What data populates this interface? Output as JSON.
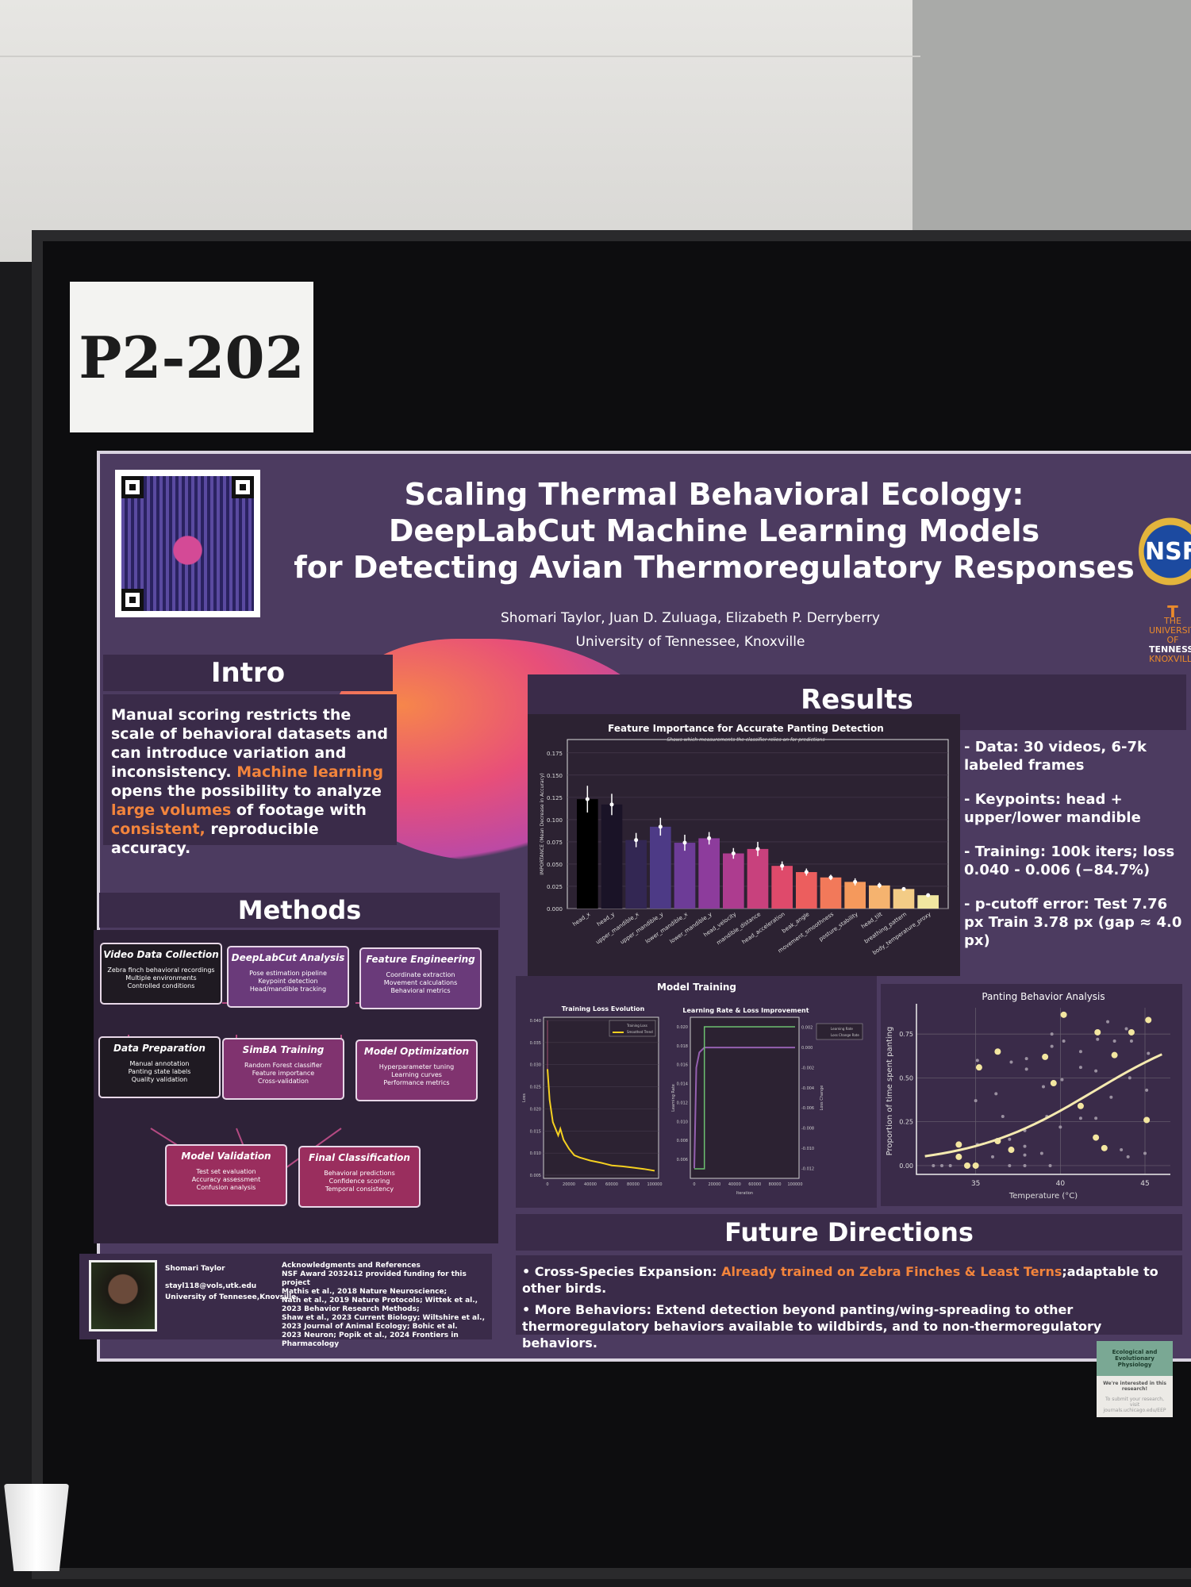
{
  "booth_label": "P2-202",
  "poster": {
    "title_lines": [
      "Scaling Thermal Behavioral Ecology:",
      "DeepLabCut Machine Learning Models",
      "for Detecting Avian Thermoregulatory Responses"
    ],
    "authors": "Shomari Taylor, Juan D. Zuluaga, Elizabeth P. Derryberry",
    "affiliation": "University of Tennessee, Knoxville",
    "logos": {
      "nsf": "NSF",
      "utk_top": "THE UNIVERSITY OF",
      "utk": "TENNESSEE",
      "utk_bottom": "KNOXVILLE"
    },
    "colors": {
      "background": "#4c3b60",
      "panel": "#3a2b49",
      "accent": "#f2843c"
    }
  },
  "intro": {
    "heading": "Intro",
    "text_a": "Manual scoring restricts the scale of behavioral datasets and can introduce variation and inconsistency. ",
    "hl1": "Machine learning",
    "text_b": " opens the possibility to analyze ",
    "hl2": "large volumes",
    "text_c": " of footage with ",
    "hl3": "consistent,",
    "text_d": " reproducible accuracy."
  },
  "methods": {
    "heading": "Methods",
    "nodes": [
      {
        "title": "Video Data Collection",
        "lines": [
          "Zebra finch behavioral recordings",
          "Multiple environments",
          "Controlled conditions"
        ]
      },
      {
        "title": "DeepLabCut Analysis",
        "lines": [
          "Pose estimation pipeline",
          "Keypoint detection",
          "Head/mandible tracking"
        ]
      },
      {
        "title": "Feature Engineering",
        "lines": [
          "Coordinate extraction",
          "Movement calculations",
          "Behavioral metrics"
        ]
      },
      {
        "title": "Data Preparation",
        "lines": [
          "Manual annotation",
          "Panting state labels",
          "Quality validation"
        ]
      },
      {
        "title": "SimBA Training",
        "lines": [
          "Random Forest classifier",
          "Feature importance",
          "Cross-validation"
        ]
      },
      {
        "title": "Model Optimization",
        "lines": [
          "Hyperparameter tuning",
          "Learning curves",
          "Performance metrics"
        ]
      },
      {
        "title": "Model Validation",
        "lines": [
          "Test set evaluation",
          "Accuracy assessment",
          "Confusion analysis"
        ]
      },
      {
        "title": "Final Classification",
        "lines": [
          "Behavioral predictions",
          "Confidence scoring",
          "Temporal consistency"
        ]
      }
    ]
  },
  "footer": {
    "name": "Shomari Taylor",
    "email": "stayl118@vols,utk.edu",
    "affiliation": "University of Tennesee,Knovsille",
    "ack_title": "Acknowledgments and References",
    "ack_lines": [
      "NSF Award 2032412 provided funding for this project",
      "Mathis et al., 2018 Nature Neuroscience;",
      "Nath et al., 2019 Nature Protocols; Wittek et al.,",
      "2023 Behavior Research Methods;",
      "Shaw et al., 2023 Current Biology; Wiltshire et al.,",
      "2023 Journal of Animal Ecology; Bohic et al.",
      "2023 Neuron; Popik et al., 2024 Frontiers in Pharmacology"
    ]
  },
  "results": {
    "heading": "Results",
    "bullets": [
      "- Data: 30 videos, 6-7k labeled frames",
      "- Keypoints: head + upper/lower mandible",
      "- Training: 100k iters; loss 0.040 - 0.006 (−84.7%)",
      "- p-cutoff error: Test 7.76 px Train 3.78 px (gap ≈ 4.0 px)"
    ]
  },
  "future": {
    "heading": "Future Directions",
    "item1_label": "Cross-Species Expansion: ",
    "item1_hl": "Already trained on Zebra Finches & Least Terns",
    "item1_rest": ";adaptable to other birds.",
    "item2": "More Behaviors: Extend detection beyond panting/wing-spreading to other thermoregulatory behaviors available to wildbirds, and to non-thermoregulatory behaviors."
  },
  "sign": {
    "org": "Ecological and Evolutionary Physiology",
    "line1": "We're interested in this research!",
    "line2": "To submit your research, visit journals.uchicago.edu/EEP"
  },
  "chart_data": [
    {
      "type": "bar",
      "title": "Feature Importance for Accurate Panting Detection",
      "subtitle": "Shows which measurements the classifier relies on for predictions",
      "ylabel": "IMPORTANCE (Mean Decrease in Accuracy)",
      "ylim": [
        0,
        0.19
      ],
      "yticks": [
        "0.000",
        "0.025",
        "0.050",
        "0.075",
        "0.100",
        "0.125",
        "0.150",
        "0.175"
      ],
      "categories": [
        "head_x",
        "head_y",
        "upper_mandible_x",
        "upper_mandible_y",
        "lower_mandible_x",
        "lower_mandible_y",
        "head_velocity",
        "mandible_distance",
        "head_acceleration",
        "beak_angle",
        "movement_smoothness",
        "posture_stability",
        "head_tilt",
        "breathing_pattern",
        "body_temperature_proxy"
      ],
      "values": [
        0.123,
        0.117,
        0.077,
        0.092,
        0.074,
        0.079,
        0.062,
        0.067,
        0.048,
        0.041,
        0.035,
        0.03,
        0.026,
        0.022,
        0.015
      ],
      "errors": [
        0.015,
        0.012,
        0.008,
        0.01,
        0.009,
        0.007,
        0.006,
        0.008,
        0.005,
        0.004,
        0.003,
        0.004,
        0.003,
        0.002,
        0.001
      ],
      "grid": true
    },
    {
      "type": "line",
      "title": "Model Training",
      "subtitle": "Training Loss Evolution",
      "ylabel": "Loss",
      "ylim": [
        0.005,
        0.04
      ],
      "yticks": [
        "0.005",
        "0.010",
        "0.015",
        "0.020",
        "0.025",
        "0.030",
        "0.035",
        "0.040"
      ],
      "xticks": [
        "0",
        "20000",
        "40000",
        "60000",
        "80000",
        "100000"
      ],
      "legend": [
        "Training Loss",
        "Smoothed Trend"
      ],
      "legend_position": "top-right",
      "x": [
        0,
        2000,
        5000,
        10000,
        12000,
        15000,
        20000,
        25000,
        30000,
        40000,
        50000,
        60000,
        70000,
        80000,
        90000,
        100000
      ],
      "series": [
        {
          "name": "Smoothed Trend",
          "values": [
            0.029,
            0.022,
            0.017,
            0.014,
            0.0155,
            0.013,
            0.011,
            0.0095,
            0.009,
            0.0083,
            0.0078,
            0.0072,
            0.007,
            0.0067,
            0.0064,
            0.006
          ]
        }
      ]
    },
    {
      "type": "line",
      "title": "Learning Rate & Loss Improvement",
      "xlabel": "Iteration",
      "ylabel": "Learning Rate",
      "ylabel_right": "Loss Change",
      "ylim": [
        0.004,
        0.021
      ],
      "yticks": [
        "0.006",
        "0.008",
        "0.010",
        "0.012",
        "0.014",
        "0.016",
        "0.018",
        "0.020"
      ],
      "ylim_right": [
        -0.013,
        0.003
      ],
      "yticks_right": [
        "-0.012",
        "-0.010",
        "-0.008",
        "-0.006",
        "-0.004",
        "-0.002",
        "0.000",
        "0.002"
      ],
      "xticks": [
        "0",
        "20000",
        "40000",
        "60000",
        "80000",
        "100000"
      ],
      "legend": [
        "Learning Rate",
        "Loss Change Rate"
      ],
      "legend_position": "outside-right",
      "x": [
        0,
        10000,
        10001,
        100000
      ],
      "series": [
        {
          "name": "Learning Rate",
          "values": [
            0.005,
            0.005,
            0.02,
            0.02
          ]
        }
      ],
      "loss_change_rate": {
        "x": [
          0,
          2000,
          5000,
          10000,
          20000,
          100000
        ],
        "values": [
          -0.012,
          -0.002,
          -0.0005,
          0,
          0,
          0
        ]
      }
    },
    {
      "type": "scatter",
      "title": "Panting Behavior Analysis",
      "xlabel": "Temperature (°C)",
      "ylabel": "Proportion of time spent panting",
      "xlim": [
        31.5,
        46.5
      ],
      "ylim": [
        -0.05,
        0.9
      ],
      "xticks": [
        "35",
        "40",
        "45"
      ],
      "yticks": [
        "0.00",
        "0.25",
        "0.50",
        "0.75"
      ],
      "points": [
        [
          34,
          0.12
        ],
        [
          34,
          0.05
        ],
        [
          34.5,
          0
        ],
        [
          35,
          0
        ],
        [
          35.2,
          0.56
        ],
        [
          36.3,
          0.65
        ],
        [
          36.3,
          0.14
        ],
        [
          37.1,
          0.09
        ],
        [
          39.1,
          0.62
        ],
        [
          39.6,
          0.47
        ],
        [
          40.2,
          0.86
        ],
        [
          41.2,
          0.34
        ],
        [
          42.2,
          0.76
        ],
        [
          42.1,
          0.16
        ],
        [
          42.6,
          0.1
        ],
        [
          43.2,
          0.63
        ],
        [
          44.2,
          0.76
        ],
        [
          45.2,
          0.83
        ],
        [
          45.1,
          0.26
        ]
      ],
      "minor_points": [
        [
          32.5,
          0
        ],
        [
          33,
          0
        ],
        [
          33.5,
          0
        ],
        [
          35,
          0.37
        ],
        [
          35.1,
          0.6
        ],
        [
          35.1,
          0.12
        ],
        [
          36,
          0.05
        ],
        [
          36.2,
          0.41
        ],
        [
          36.6,
          0.28
        ],
        [
          37.1,
          0.59
        ],
        [
          37,
          0.15
        ],
        [
          37,
          0
        ],
        [
          38,
          0.61
        ],
        [
          38,
          0.55
        ],
        [
          37.9,
          0.2
        ],
        [
          37.9,
          0.11
        ],
        [
          37.9,
          0.06
        ],
        [
          37.9,
          0
        ],
        [
          38.9,
          0.07
        ],
        [
          39,
          0.45
        ],
        [
          39.2,
          0.28
        ],
        [
          39.5,
          0.75
        ],
        [
          39.5,
          0.68
        ],
        [
          39.4,
          0
        ],
        [
          40,
          0.22
        ],
        [
          40.1,
          0.49
        ],
        [
          40.2,
          0.71
        ],
        [
          41.2,
          0.65
        ],
        [
          41.2,
          0.56
        ],
        [
          41.2,
          0.27
        ],
        [
          42.1,
          0.54
        ],
        [
          42.1,
          0.27
        ],
        [
          42.2,
          0.72
        ],
        [
          42.8,
          0.82
        ],
        [
          43,
          0.39
        ],
        [
          43.2,
          0.71
        ],
        [
          43.6,
          0.09
        ],
        [
          43.9,
          0.78
        ],
        [
          44,
          0.05
        ],
        [
          44.1,
          0.5
        ],
        [
          44.2,
          0.71
        ],
        [
          45,
          0.07
        ],
        [
          45.1,
          0.43
        ],
        [
          45.2,
          0.64
        ]
      ],
      "trend": "logistic fit",
      "grid": true
    }
  ]
}
